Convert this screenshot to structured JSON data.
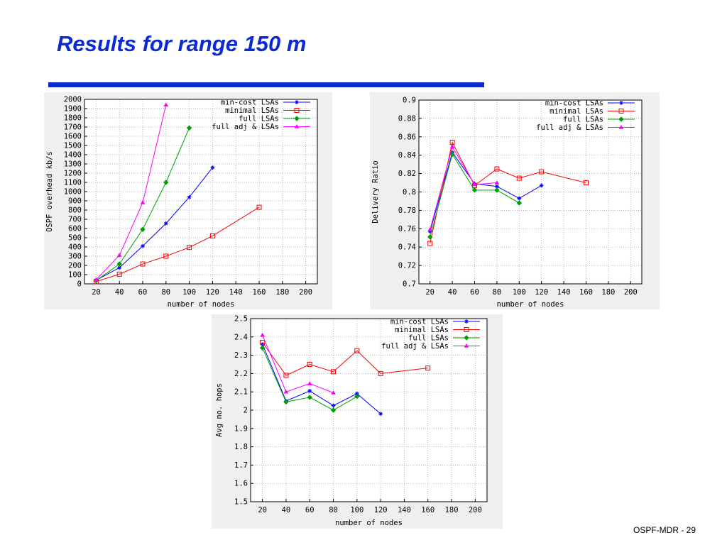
{
  "slide": {
    "title": "Results for range 150 m",
    "footer": "OSPF-MDR - 29"
  },
  "chart_data": [
    {
      "type": "line",
      "title": "",
      "xlabel": "number of nodes",
      "ylabel": "OSPF overhead kb/s",
      "xlim": [
        10,
        210
      ],
      "ylim": [
        0,
        2000
      ],
      "xticks": [
        20,
        40,
        60,
        80,
        100,
        120,
        140,
        160,
        180,
        200
      ],
      "yticks": [
        0,
        100,
        200,
        300,
        400,
        500,
        600,
        700,
        800,
        900,
        1000,
        1100,
        1200,
        1300,
        1400,
        1500,
        1600,
        1700,
        1800,
        1900,
        2000
      ],
      "grid": true,
      "legend_position": "top-right",
      "series": [
        {
          "name": "min-cost LSAs",
          "color": "#0000ff",
          "marker": "star",
          "x": [
            20,
            40,
            60,
            80,
            100,
            120
          ],
          "y": [
            40,
            175,
            410,
            655,
            940,
            1260
          ]
        },
        {
          "name": "minimal LSAs",
          "color": "#ff0000",
          "marker": "square",
          "x": [
            20,
            40,
            60,
            80,
            100,
            120,
            160
          ],
          "y": [
            25,
            105,
            215,
            300,
            395,
            520,
            830
          ]
        },
        {
          "name": "full LSAs",
          "color": "#00a000",
          "marker": "diamond",
          "x": [
            20,
            40,
            60,
            80,
            100
          ],
          "y": [
            35,
            215,
            590,
            1100,
            1690
          ]
        },
        {
          "name": "full adj & LSAs",
          "color": "#ff00ff",
          "marker": "triangle",
          "x": [
            20,
            40,
            60,
            80
          ],
          "y": [
            45,
            310,
            880,
            1940
          ]
        }
      ]
    },
    {
      "type": "line",
      "title": "",
      "xlabel": "number of nodes",
      "ylabel": "Delivery Ratio",
      "xlim": [
        10,
        210
      ],
      "ylim": [
        0.7,
        0.9
      ],
      "xticks": [
        20,
        40,
        60,
        80,
        100,
        120,
        140,
        160,
        180,
        200
      ],
      "yticks": [
        0.7,
        0.72,
        0.74,
        0.76,
        0.78,
        0.8,
        0.82,
        0.84,
        0.86,
        0.88,
        0.9
      ],
      "grid": true,
      "legend_position": "top-right",
      "series": [
        {
          "name": "min-cost LSAs",
          "color": "#0000ff",
          "marker": "star",
          "x": [
            20,
            40,
            60,
            80,
            100,
            120
          ],
          "y": [
            0.757,
            0.843,
            0.809,
            0.806,
            0.793,
            0.807
          ]
        },
        {
          "name": "minimal LSAs",
          "color": "#ff0000",
          "marker": "square",
          "x": [
            20,
            40,
            60,
            80,
            100,
            120,
            160
          ],
          "y": [
            0.744,
            0.854,
            0.807,
            0.825,
            0.815,
            0.822,
            0.81
          ]
        },
        {
          "name": "full LSAs",
          "color": "#00a000",
          "marker": "diamond",
          "x": [
            20,
            40,
            60,
            80,
            100
          ],
          "y": [
            0.751,
            0.841,
            0.802,
            0.802,
            0.788
          ]
        },
        {
          "name": "full adj & LSAs",
          "color": "#ff00ff",
          "marker": "triangle",
          "x": [
            20,
            40,
            60,
            80
          ],
          "y": [
            0.759,
            0.849,
            0.808,
            0.81
          ]
        }
      ]
    },
    {
      "type": "line",
      "title": "",
      "xlabel": "number of nodes",
      "ylabel": "Avg no. hops",
      "xlim": [
        10,
        210
      ],
      "ylim": [
        1.5,
        2.5
      ],
      "xticks": [
        20,
        40,
        60,
        80,
        100,
        120,
        140,
        160,
        180,
        200
      ],
      "yticks": [
        1.5,
        1.6,
        1.7,
        1.8,
        1.9,
        2,
        2.1,
        2.2,
        2.3,
        2.4,
        2.5
      ],
      "grid": true,
      "legend_position": "top-right",
      "series": [
        {
          "name": "min-cost LSAs",
          "color": "#0000ff",
          "marker": "star",
          "x": [
            20,
            40,
            60,
            80,
            100,
            120
          ],
          "y": [
            2.36,
            2.05,
            2.105,
            2.025,
            2.09,
            1.98
          ]
        },
        {
          "name": "minimal LSAs",
          "color": "#ff0000",
          "marker": "square",
          "x": [
            20,
            40,
            60,
            80,
            100,
            120,
            160
          ],
          "y": [
            2.37,
            2.19,
            2.25,
            2.21,
            2.325,
            2.2,
            2.23
          ]
        },
        {
          "name": "full LSAs",
          "color": "#00a000",
          "marker": "diamond",
          "x": [
            20,
            40,
            60,
            80,
            100
          ],
          "y": [
            2.34,
            2.045,
            2.07,
            2.0,
            2.075
          ]
        },
        {
          "name": "full adj & LSAs",
          "color": "#ff00ff",
          "marker": "triangle",
          "x": [
            20,
            40,
            60,
            80
          ],
          "y": [
            2.41,
            2.1,
            2.145,
            2.095
          ]
        }
      ]
    }
  ]
}
